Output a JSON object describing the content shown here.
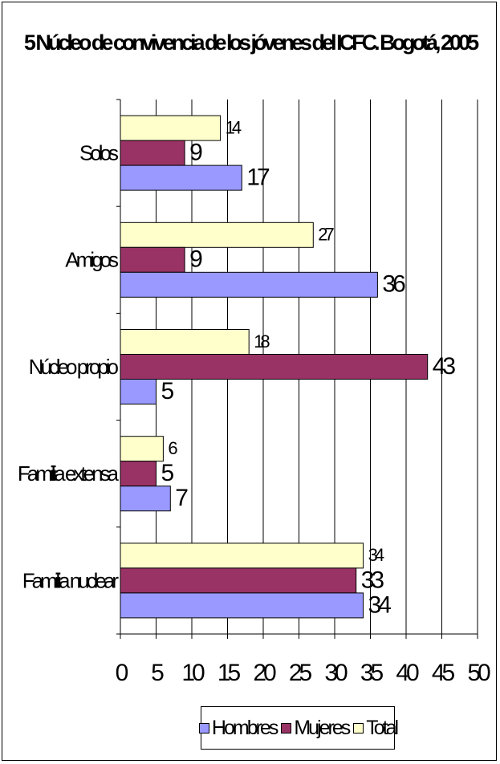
{
  "chart_data": {
    "type": "bar",
    "orientation": "horizontal",
    "title": "5 Núcleo de convivencia de los jóvenes del ICFC. Bogotá, 2005",
    "categories": [
      "Solos",
      "Amigos",
      "Núcleo propio",
      "Familia extensa",
      "Familia nuclear"
    ],
    "series": [
      {
        "name": "Hombres",
        "values": [
          17,
          36,
          5,
          7,
          34
        ],
        "color": "#9999ff"
      },
      {
        "name": "Mujeres",
        "values": [
          9,
          9,
          43,
          5,
          33
        ],
        "color": "#993366"
      },
      {
        "name": "Total",
        "values": [
          14,
          27,
          18,
          6,
          34
        ],
        "color": "#ffffcc"
      }
    ],
    "xlim": [
      0,
      50
    ],
    "xticks": [
      0,
      5,
      10,
      15,
      20,
      25,
      30,
      35,
      40,
      45,
      50
    ],
    "xlabel": "",
    "ylabel": "",
    "grid": true,
    "legend_position": "bottom"
  }
}
